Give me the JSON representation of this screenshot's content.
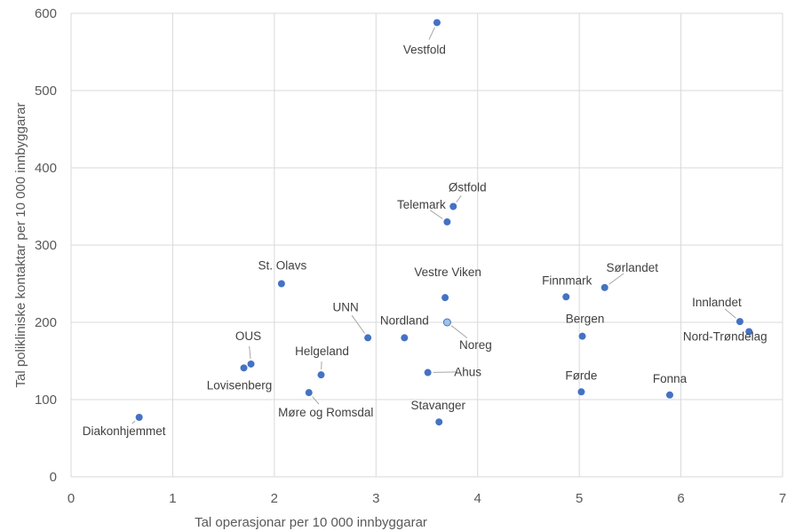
{
  "chart_data": {
    "type": "scatter",
    "title": "",
    "xlabel": "Tal operasjonar per 10 000 innbyggarar",
    "ylabel": "Tal polikliniske kontaktar per 10 000 innbyggarar",
    "xlim": [
      0,
      7
    ],
    "ylim": [
      0,
      600
    ],
    "xticks": [
      0,
      1,
      2,
      3,
      4,
      5,
      6,
      7
    ],
    "yticks": [
      0,
      100,
      200,
      300,
      400,
      500,
      600
    ],
    "grid": true,
    "marker_color": "#4472c4",
    "highlight_color": "#9dc3e6",
    "points": [
      {
        "name": "Vestfold",
        "x": 3.6,
        "y": 588
      },
      {
        "name": "Østfold",
        "x": 3.76,
        "y": 350
      },
      {
        "name": "Telemark",
        "x": 3.7,
        "y": 330
      },
      {
        "name": "St. Olavs",
        "x": 2.07,
        "y": 250
      },
      {
        "name": "Vestre Viken",
        "x": 3.68,
        "y": 232
      },
      {
        "name": "Finnmark",
        "x": 4.87,
        "y": 233
      },
      {
        "name": "Sørlandet",
        "x": 5.25,
        "y": 245
      },
      {
        "name": "Innlandet",
        "x": 6.58,
        "y": 201
      },
      {
        "name": "Nord-Trøndelag",
        "x": 6.67,
        "y": 188
      },
      {
        "name": "Noreg",
        "x": 3.7,
        "y": 200,
        "highlight": true
      },
      {
        "name": "Nordland",
        "x": 3.28,
        "y": 180
      },
      {
        "name": "UNN",
        "x": 2.92,
        "y": 180
      },
      {
        "name": "Bergen",
        "x": 5.03,
        "y": 182
      },
      {
        "name": "OUS",
        "x": 1.77,
        "y": 146
      },
      {
        "name": "Lovisenberg",
        "x": 1.7,
        "y": 141
      },
      {
        "name": "Helgeland",
        "x": 2.46,
        "y": 132
      },
      {
        "name": "Ahus",
        "x": 3.51,
        "y": 135
      },
      {
        "name": "Møre og Romsdal",
        "x": 2.34,
        "y": 109
      },
      {
        "name": "Førde",
        "x": 5.02,
        "y": 110
      },
      {
        "name": "Fonna",
        "x": 5.89,
        "y": 106
      },
      {
        "name": "Stavanger",
        "x": 3.62,
        "y": 71
      },
      {
        "name": "Diakonhjemmet",
        "x": 0.67,
        "y": 77
      }
    ]
  }
}
